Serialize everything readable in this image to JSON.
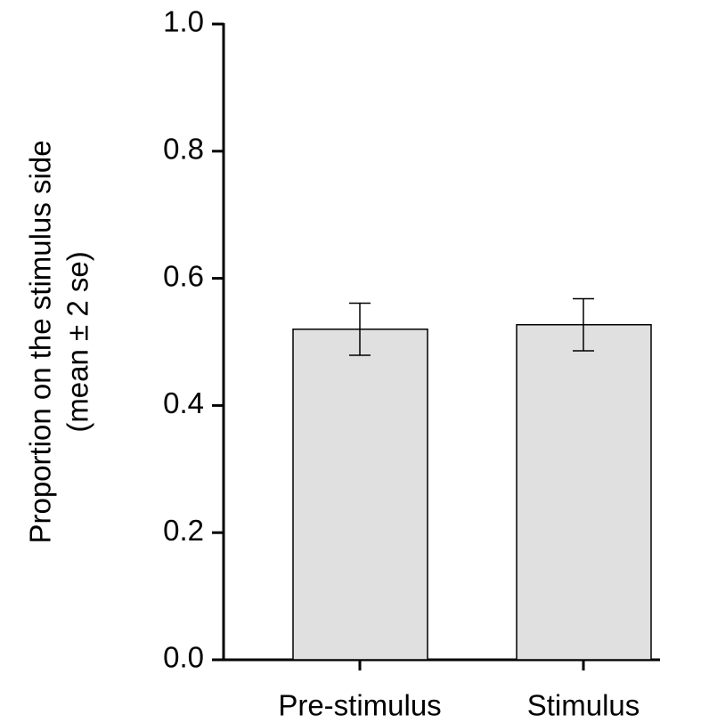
{
  "chart_data": {
    "type": "bar",
    "ylabel": [
      "Proportion on the stimulus side",
      "(mean ± 2 se)"
    ],
    "categories": [
      "Pre-stimulus",
      "Stimulus"
    ],
    "values": [
      0.52,
      0.527
    ],
    "errors": [
      0.041,
      0.041
    ],
    "color": "#e0e0e0",
    "ylim": [
      0,
      1
    ],
    "yticks": [
      {
        "value": 0,
        "label": "0.0"
      },
      0.2,
      0.4,
      0.6,
      0.8,
      {
        "value": 1,
        "label": "1.0"
      }
    ],
    "grid": false
  }
}
